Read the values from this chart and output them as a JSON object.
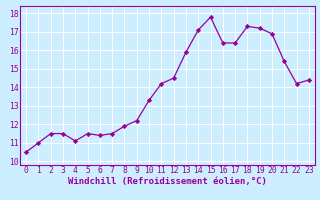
{
  "x": [
    0,
    1,
    2,
    3,
    4,
    5,
    6,
    7,
    8,
    9,
    10,
    11,
    12,
    13,
    14,
    15,
    16,
    17,
    18,
    19,
    20,
    21,
    22,
    23
  ],
  "y": [
    10.5,
    11.0,
    11.5,
    11.5,
    11.1,
    11.5,
    11.4,
    11.5,
    11.9,
    12.2,
    13.3,
    14.2,
    14.5,
    15.9,
    17.1,
    17.8,
    16.4,
    16.4,
    17.3,
    17.2,
    16.9,
    15.4,
    14.2,
    14.4
  ],
  "line_color": "#990099",
  "marker": "D",
  "marker_size": 2.2,
  "bg_color": "#cceeff",
  "grid_color": "#ffffff",
  "xlabel": "Windchill (Refroidissement éolien,°C)",
  "xlabel_color": "#990099",
  "xlabel_fontsize": 6.5,
  "ylabel_ticks": [
    10,
    11,
    12,
    13,
    14,
    15,
    16,
    17,
    18
  ],
  "ylim": [
    9.8,
    18.4
  ],
  "xlim": [
    -0.5,
    23.5
  ],
  "tick_fontsize": 5.8,
  "tick_color": "#990099",
  "spine_color": "#990099",
  "xtick_labels": [
    "0",
    "1",
    "2",
    "3",
    "4",
    "5",
    "6",
    "7",
    "8",
    "9",
    "10",
    "11",
    "12",
    "13",
    "14",
    "15",
    "16",
    "17",
    "18",
    "19",
    "20",
    "21",
    "22",
    "23"
  ]
}
